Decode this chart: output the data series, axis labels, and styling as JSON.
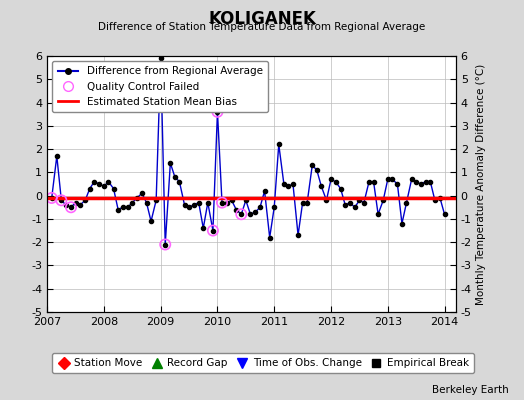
{
  "title": "KOLIGANEK",
  "subtitle": "Difference of Station Temperature Data from Regional Average",
  "ylabel_right": "Monthly Temperature Anomaly Difference (°C)",
  "watermark": "Berkeley Earth",
  "bias_value": -0.1,
  "ylim": [
    -5,
    6
  ],
  "xlim": [
    2007.0,
    2014.2
  ],
  "xticks": [
    2007,
    2008,
    2009,
    2010,
    2011,
    2012,
    2013,
    2014
  ],
  "yticks": [
    -5,
    -4,
    -3,
    -2,
    -1,
    0,
    1,
    2,
    3,
    4,
    5,
    6
  ],
  "bg_color": "#d8d8d8",
  "plot_bg_color": "#ffffff",
  "line_color": "#0000cc",
  "bias_color": "#ff0000",
  "qc_color": "#ff66ff",
  "times": [
    2007.08,
    2007.17,
    2007.25,
    2007.33,
    2007.42,
    2007.5,
    2007.58,
    2007.67,
    2007.75,
    2007.83,
    2007.92,
    2008.0,
    2008.08,
    2008.17,
    2008.25,
    2008.33,
    2008.42,
    2008.5,
    2008.58,
    2008.67,
    2008.75,
    2008.83,
    2008.92,
    2009.0,
    2009.08,
    2009.17,
    2009.25,
    2009.33,
    2009.42,
    2009.5,
    2009.58,
    2009.67,
    2009.75,
    2009.83,
    2009.92,
    2010.0,
    2010.08,
    2010.17,
    2010.25,
    2010.33,
    2010.42,
    2010.5,
    2010.58,
    2010.67,
    2010.75,
    2010.83,
    2010.92,
    2011.0,
    2011.08,
    2011.17,
    2011.25,
    2011.33,
    2011.42,
    2011.5,
    2011.58,
    2011.67,
    2011.75,
    2011.83,
    2011.92,
    2012.0,
    2012.08,
    2012.17,
    2012.25,
    2012.33,
    2012.42,
    2012.5,
    2012.58,
    2012.67,
    2012.75,
    2012.83,
    2012.92,
    2013.0,
    2013.08,
    2013.17,
    2013.25,
    2013.33,
    2013.42,
    2013.5,
    2013.58,
    2013.67,
    2013.75,
    2013.83,
    2013.92,
    2014.0
  ],
  "values": [
    -0.1,
    1.7,
    -0.2,
    -0.4,
    -0.5,
    -0.3,
    -0.4,
    -0.2,
    0.3,
    0.6,
    0.5,
    0.4,
    0.6,
    0.3,
    -0.6,
    -0.5,
    -0.5,
    -0.3,
    -0.1,
    0.1,
    -0.3,
    -1.1,
    -0.2,
    5.9,
    -2.1,
    1.4,
    0.8,
    0.6,
    -0.4,
    -0.5,
    -0.4,
    -0.3,
    -1.4,
    -0.3,
    -1.5,
    3.6,
    -0.3,
    -0.3,
    -0.2,
    -0.6,
    -0.8,
    -0.2,
    -0.8,
    -0.7,
    -0.5,
    0.2,
    -1.8,
    -0.5,
    2.2,
    0.5,
    0.4,
    0.5,
    -1.7,
    -0.3,
    -0.3,
    1.3,
    1.1,
    0.4,
    -0.2,
    0.7,
    0.6,
    0.3,
    -0.4,
    -0.3,
    -0.5,
    -0.2,
    -0.3,
    0.6,
    0.6,
    -0.8,
    -0.2,
    0.7,
    0.7,
    0.5,
    -1.2,
    -0.3,
    0.7,
    0.6,
    0.5,
    0.6,
    0.6,
    -0.2,
    -0.1,
    -0.8
  ],
  "qc_failed_times": [
    2007.08,
    2007.25,
    2007.42,
    2009.08,
    2009.92,
    2010.0,
    2010.08,
    2010.42
  ],
  "qc_failed_values": [
    -0.1,
    -0.2,
    -0.5,
    -2.1,
    -1.5,
    3.6,
    -0.3,
    -0.8
  ]
}
